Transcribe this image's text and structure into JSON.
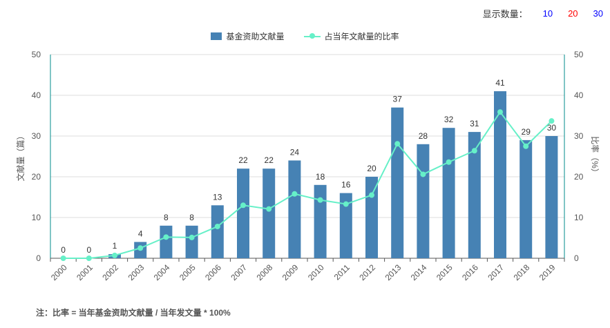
{
  "display": {
    "label": "显示数量：",
    "options": [
      "10",
      "20",
      "30"
    ],
    "colors": [
      "#0000ff",
      "#ff0000",
      "#0000ff"
    ]
  },
  "note": "注：比率 = 当年基金资助文献量 / 当年发文量 * 100%",
  "colors": {
    "bar": "#4682b4",
    "line": "#66f0c8",
    "axis": "#008b8b",
    "grid": "#dddddd"
  },
  "chart_data": {
    "type": "bar",
    "categories": [
      "2000",
      "2001",
      "2002",
      "2003",
      "2004",
      "2005",
      "2006",
      "2007",
      "2008",
      "2009",
      "2010",
      "2011",
      "2012",
      "2013",
      "2014",
      "2015",
      "2016",
      "2017",
      "2018",
      "2019"
    ],
    "series": [
      {
        "name": "基金资助文献量",
        "type": "bar",
        "axis": "left",
        "values": [
          0,
          0,
          1,
          4,
          8,
          8,
          13,
          22,
          22,
          24,
          18,
          16,
          20,
          37,
          28,
          32,
          31,
          41,
          29,
          30
        ]
      },
      {
        "name": "占当年文献量的比率",
        "type": "line",
        "axis": "right",
        "values": [
          0,
          0,
          0.7,
          2.5,
          5.2,
          5.1,
          7.8,
          13,
          12.1,
          15.8,
          14.3,
          13.3,
          15.5,
          28.1,
          20.6,
          23.6,
          26.4,
          35.9,
          27.5,
          33.7
        ]
      }
    ],
    "ylabel": "文献量（篇）",
    "y2label": "比率（%）",
    "ylim": [
      0,
      50
    ],
    "y2lim": [
      0,
      50
    ],
    "yticks": [
      0,
      10,
      20,
      30,
      40,
      50
    ],
    "grid": true,
    "legend_position": "top"
  }
}
